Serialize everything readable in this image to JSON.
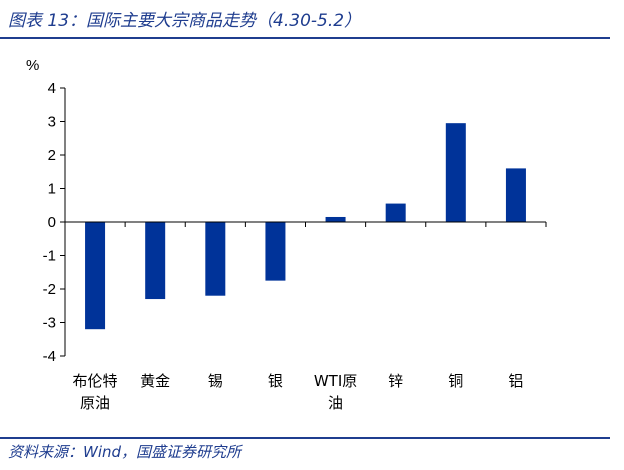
{
  "header": {
    "title": "图表 13：国际主要大宗商品走势（4.30-5.2）"
  },
  "footer": {
    "source": "资料来源：Wind，国盛证券研究所"
  },
  "colors": {
    "bar": "#003399",
    "accent": "#1f3d8f"
  },
  "chart_data": {
    "type": "bar",
    "title": "",
    "xlabel": "",
    "ylabel": "%",
    "ylim": [
      -4,
      4
    ],
    "yticks": [
      4,
      3,
      2,
      1,
      0,
      -1,
      -2,
      -3,
      -4
    ],
    "grid": false,
    "legend": "none",
    "categories": [
      "布伦特原油",
      "黄金",
      "锡",
      "银",
      "WTI原油",
      "锌",
      "铜",
      "铝"
    ],
    "category_lines": [
      [
        "布伦特",
        "原油"
      ],
      [
        "黄金"
      ],
      [
        "锡"
      ],
      [
        "银"
      ],
      [
        "WTI原",
        "油"
      ],
      [
        "锌"
      ],
      [
        "铜"
      ],
      [
        "铝"
      ]
    ],
    "values": [
      -3.2,
      -2.3,
      -2.2,
      -1.75,
      0.15,
      0.55,
      2.95,
      1.6
    ]
  }
}
